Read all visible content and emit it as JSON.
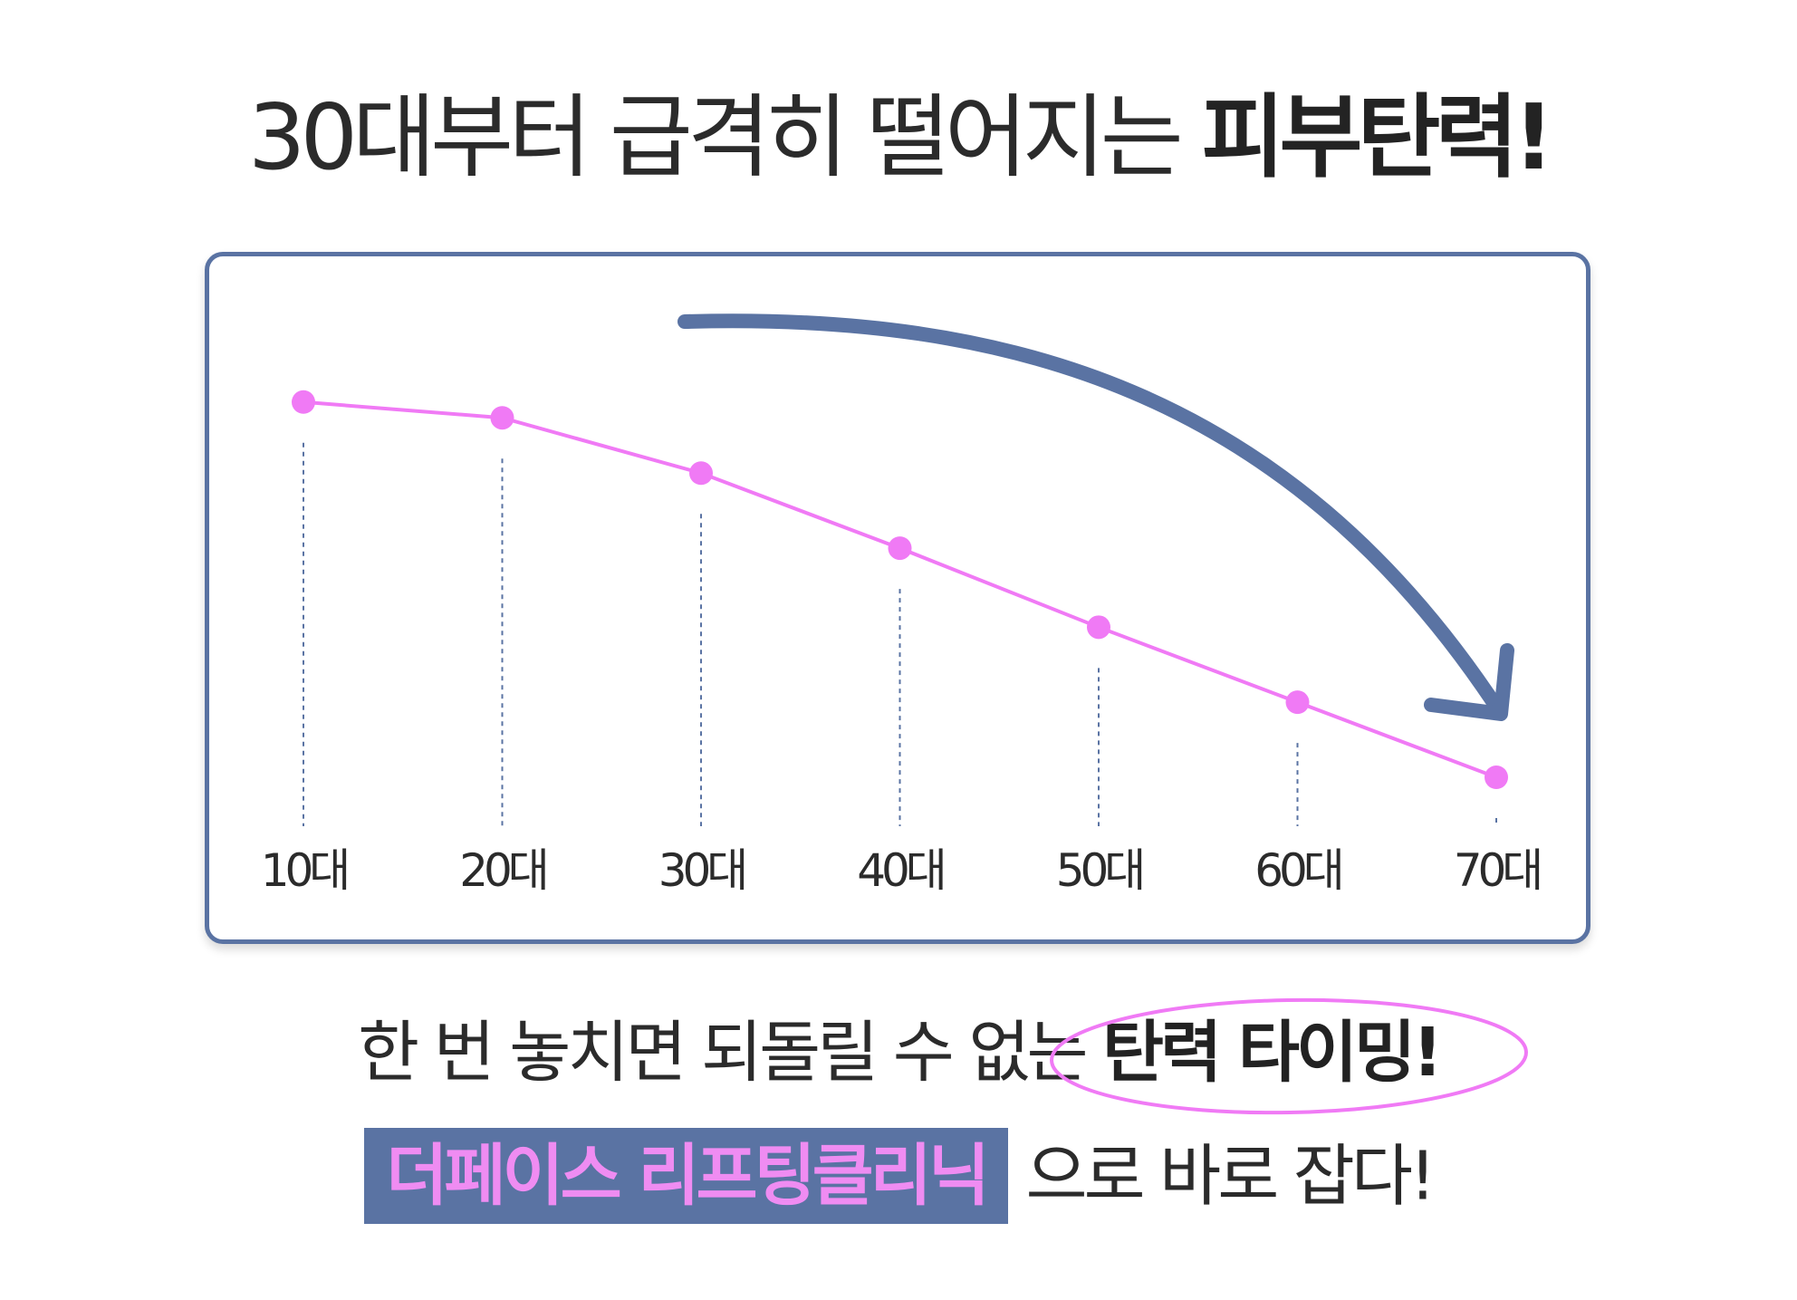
{
  "headline": {
    "normal": "30대부터 급격히 떨어지는 ",
    "bold": "피부탄력!"
  },
  "chart_data": {
    "type": "line",
    "categories": [
      "10대",
      "20대",
      "30대",
      "40대",
      "50대",
      "60대",
      "70대"
    ],
    "values": [
      95,
      91,
      77,
      58,
      38,
      19,
      0
    ],
    "ylim": [
      0,
      100
    ],
    "grid": false,
    "line_color": "#f07af5",
    "arrow_color": "#5a73a3",
    "guide_color": "#5a73a3"
  },
  "caption": {
    "line1_normal": "한 번 놓치면 되돌릴 수 없는 ",
    "line1_bold": "탄력 타이밍!",
    "line2_badge": "더페이스 리프팅클리닉",
    "line2_rest": " 으로 바로 잡다!"
  },
  "colors": {
    "accent": "#5a73a3",
    "pink": "#ef8cf2"
  }
}
